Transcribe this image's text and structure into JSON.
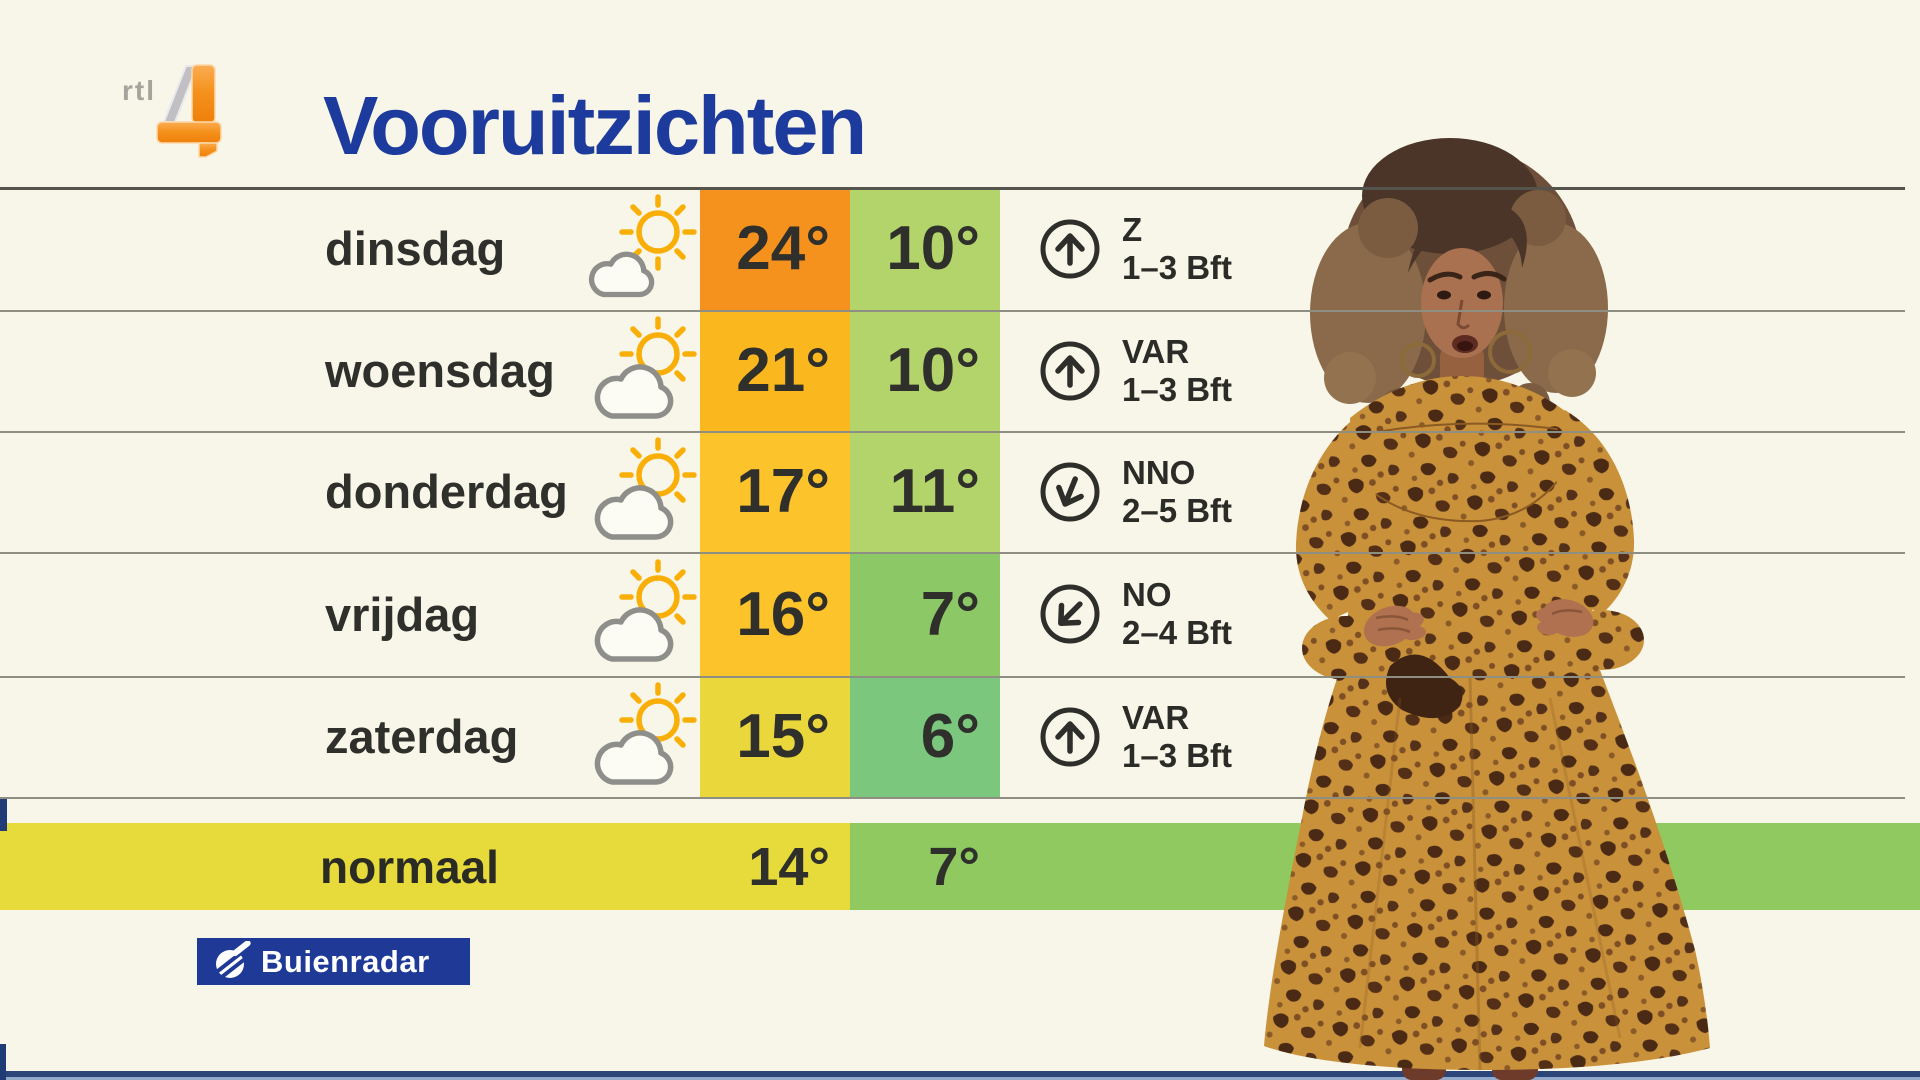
{
  "header": {
    "channel_prefix": "rtl",
    "channel_number": "4",
    "title": "Vooruitzichten"
  },
  "table": {
    "rows": [
      {
        "day": "dinsdag",
        "icon": "sun-behind-small-cloud",
        "max": "24°",
        "min": "10°",
        "max_color": "#F5921E",
        "min_color": "#B3D46A",
        "wind": {
          "dir": "Z",
          "speed": "1–3 Bft",
          "arrow_deg": 0
        }
      },
      {
        "day": "woensdag",
        "icon": "sun-behind-cloud",
        "max": "21°",
        "min": "10°",
        "max_color": "#FBB71E",
        "min_color": "#B3D46A",
        "wind": {
          "dir": "VAR",
          "speed": "1–3 Bft",
          "arrow_deg": 0
        }
      },
      {
        "day": "donderdag",
        "icon": "sun-behind-cloud",
        "max": "17°",
        "min": "11°",
        "max_color": "#FCC32B",
        "min_color": "#B3D46A",
        "wind": {
          "dir": "NNO",
          "speed": "2–5 Bft",
          "arrow_deg": 202
        }
      },
      {
        "day": "vrijdag",
        "icon": "sun-behind-cloud",
        "max": "16°",
        "min": "7°",
        "max_color": "#FCC32B",
        "min_color": "#8CC966",
        "wind": {
          "dir": "NO",
          "speed": "2–4 Bft",
          "arrow_deg": 225
        }
      },
      {
        "day": "zaterdag",
        "icon": "sun-behind-cloud",
        "max": "15°",
        "min": "6°",
        "max_color": "#E9D73C",
        "min_color": "#7CC77E",
        "wind": {
          "dir": "VAR",
          "speed": "1–3 Bft",
          "arrow_deg": 0
        }
      }
    ],
    "normal_row": {
      "label": "normaal",
      "max": "14°",
      "min": "7°",
      "yellow_color": "#E7DA3B",
      "green_color": "#8FC95F"
    }
  },
  "footer": {
    "logo_text": "Buienradar",
    "box_color": "#1E3A96"
  },
  "colors": {
    "background": "#F8F6E8",
    "title_navy": "#1D3B9C",
    "row_line": "#8F8E82",
    "text_dark": "#2F2F2B",
    "sun": "#F9AF08",
    "cloud_stroke": "#8E8E8A",
    "wind_icon": "#2E2E2A",
    "bottom_line_navy": "#2B4579",
    "rtl_orange": "#F5921E"
  }
}
